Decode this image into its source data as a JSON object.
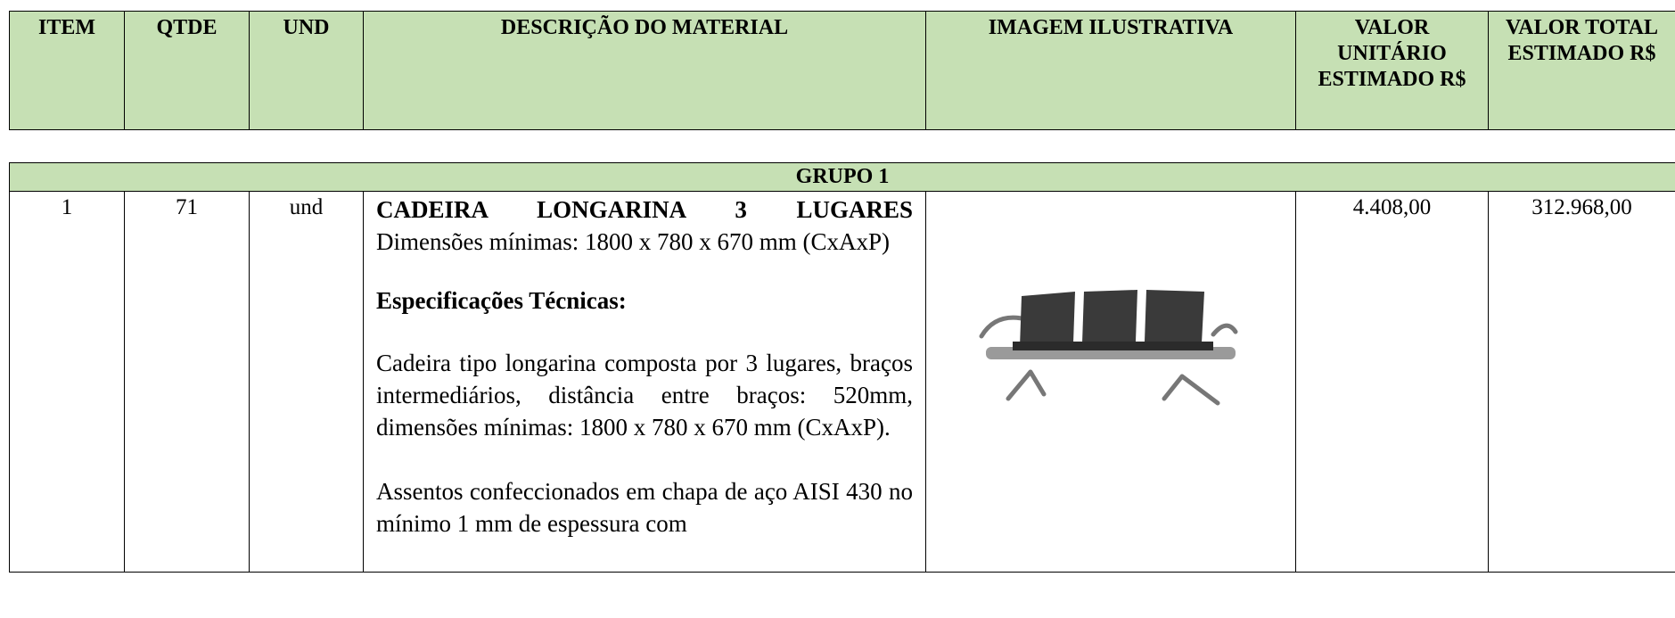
{
  "header": {
    "columns": [
      "ITEM",
      "QTDE",
      "UND",
      "DESCRIÇÃO DO MATERIAL",
      "IMAGEM ILUSTRATIVA",
      "VALOR UNITÁRIO ESTIMADO R$",
      "VALOR TOTAL ESTIMADO R$"
    ]
  },
  "group": {
    "title": "GRUPO 1"
  },
  "rows": [
    {
      "item": "1",
      "qtde": "71",
      "und": "und",
      "description": {
        "title": "CADEIRA LONGARINA 3 LUGARES",
        "dimensions": "Dimensões mínimas: 1800 x 780 x 670 mm (CxAxP)",
        "spec_heading": "Especificações Técnicas:",
        "paragraphs": [
          "Cadeira tipo longarina composta por 3 lugares, braços intermediários, distância entre braços: 520mm, dimensões mínimas: 1800 x 780 x 670 mm (CxAxP).",
          "Assentos confeccionados em chapa de aço AISI 430 no mínimo 1 mm de espessura com"
        ]
      },
      "unit_value": "4.408,00",
      "total_value": "312.968,00"
    }
  ]
}
